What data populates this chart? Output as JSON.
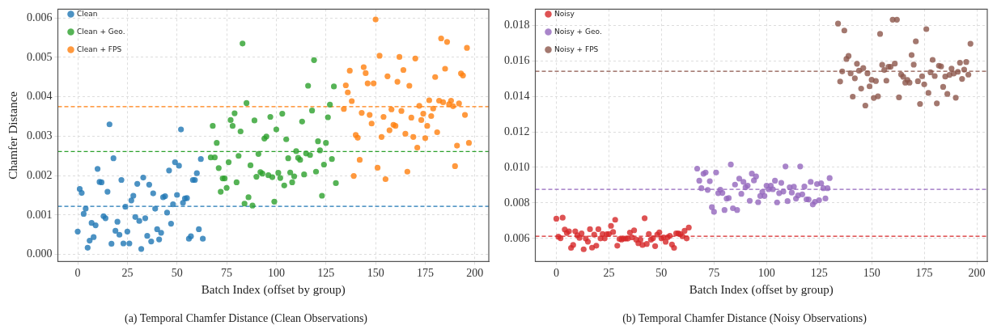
{
  "chart_data": [
    {
      "type": "scatter",
      "title": "(a) Temporal Chamfer Distance (Clean Observations)",
      "xlabel": "Batch Index (offset by group)",
      "ylabel": "Chamfer Distance",
      "xlim": [
        -10,
        207
      ],
      "ylim": [
        -0.00018,
        0.00622
      ],
      "xticks": [
        0,
        25,
        50,
        75,
        100,
        125,
        150,
        175,
        200
      ],
      "yticks": [
        {
          "value": 0,
          "label": "0.000"
        },
        {
          "value": 0.001,
          "label": "0.001"
        },
        {
          "value": 0.002,
          "label": "0.002"
        },
        {
          "value": 0.003,
          "label": "0.003"
        },
        {
          "value": 0.004,
          "label": "0.004"
        },
        {
          "value": 0.005,
          "label": "0.005"
        },
        {
          "value": 0.006,
          "label": "0.006"
        }
      ],
      "grid": true,
      "legend": "top left",
      "marker": "circle",
      "series": [
        {
          "name": "Clean",
          "color": "#1f77b4",
          "x": [
            0,
            1,
            2,
            3,
            4,
            5,
            6,
            7,
            8,
            9,
            10,
            11,
            12,
            13,
            14,
            15,
            16,
            17,
            18,
            19,
            20,
            21,
            22,
            23,
            24,
            25,
            26,
            27,
            28,
            29,
            30,
            31,
            32,
            33,
            34,
            35,
            36,
            37,
            38,
            39,
            40,
            41,
            42,
            43,
            44,
            45,
            46,
            47,
            48,
            49,
            50,
            51,
            52,
            53,
            54,
            55,
            56,
            57,
            58,
            59,
            60,
            61,
            62,
            63
          ],
          "values": [
            0.00058,
            0.00166,
            0.00156,
            0.00103,
            0.00116,
            0.00017,
            0.00035,
            0.0008,
            0.00044,
            0.00074,
            0.00217,
            0.00184,
            0.00183,
            0.00097,
            0.00092,
            0.00159,
            0.0033,
            0.00027,
            0.00244,
            0.0006,
            0.00083,
            0.0005,
            0.00189,
            0.00028,
            0.00121,
            0.00058,
            0.00028,
            0.00137,
            0.00149,
            0.00095,
            0.00179,
            0.00085,
            0.00014,
            0.00195,
            0.00092,
            0.00047,
            0.00177,
            0.00033,
            0.00155,
            0.00116,
            0.00064,
            0.00038,
            0.00055,
            0.00145,
            0.00148,
            0.00106,
            0.00213,
            0.00078,
            0.00127,
            0.00234,
            0.00151,
            0.00225,
            0.00317,
            0.00131,
            0.00142,
            0.00143,
            0.0004,
            0.00046,
            0.00189,
            0.00189,
            0.00206,
            0.00064,
            0.00242,
            0.0004
          ]
        },
        {
          "name": "Clean + Geo.",
          "color": "#2ca02c",
          "x": [
            67,
            68,
            69,
            70,
            71,
            72,
            73,
            74,
            75,
            76,
            77,
            78,
            79,
            80,
            81,
            82,
            83,
            84,
            85,
            86,
            87,
            88,
            89,
            90,
            91,
            92,
            93,
            94,
            95,
            96,
            97,
            98,
            99,
            100,
            101,
            102,
            103,
            104,
            105,
            106,
            107,
            108,
            109,
            110,
            111,
            112,
            113,
            114,
            115,
            116,
            117,
            118,
            119,
            120,
            121,
            122,
            123,
            124,
            125,
            126,
            127,
            128,
            129,
            130
          ],
          "values": [
            0.00246,
            0.00326,
            0.00246,
            0.00283,
            0.00219,
            0.00159,
            0.00193,
            0.00193,
            0.00169,
            0.00234,
            0.00341,
            0.00326,
            0.00358,
            0.00183,
            0.0025,
            0.00312,
            0.00535,
            0.00129,
            0.00384,
            0.00145,
            0.00226,
            0.00124,
            0.0034,
            0.00197,
            0.00255,
            0.00209,
            0.00205,
            0.00294,
            0.00299,
            0.00201,
            0.00349,
            0.00196,
            0.00134,
            0.00317,
            0.00207,
            0.00194,
            0.00357,
            0.00175,
            0.00292,
            0.00244,
            0.00208,
            0.00183,
            0.00198,
            0.00262,
            0.00245,
            0.0024,
            0.00337,
            0.00203,
            0.00256,
            0.00428,
            0.00252,
            0.00365,
            0.00493,
            0.0021,
            0.00287,
            0.00264,
            0.00149,
            0.00228,
            0.00283,
            0.00348,
            0.0038,
            0.00242,
            0.00426,
            0.00181
          ]
        },
        {
          "name": "Clean + FPS",
          "color": "#ff7f0e",
          "x": [
            134,
            135,
            136,
            137,
            138,
            139,
            140,
            141,
            142,
            143,
            144,
            145,
            146,
            147,
            148,
            149,
            150,
            151,
            152,
            153,
            154,
            155,
            156,
            157,
            158,
            159,
            160,
            161,
            162,
            163,
            164,
            165,
            166,
            167,
            168,
            169,
            170,
            171,
            172,
            173,
            174,
            175,
            176,
            177,
            178,
            179,
            180,
            181,
            182,
            183,
            184,
            185,
            186,
            187,
            188,
            189,
            190,
            191,
            192,
            193,
            194,
            195,
            196,
            197
          ],
          "values": [
            0.00369,
            0.00429,
            0.00411,
            0.00466,
            0.00389,
            0.00199,
            0.00303,
            0.00296,
            0.0024,
            0.00359,
            0.00475,
            0.0046,
            0.00434,
            0.00354,
            0.00332,
            0.00434,
            0.00596,
            0.0022,
            0.00504,
            0.00298,
            0.00349,
            0.00191,
            0.00452,
            0.00315,
            0.00368,
            0.00329,
            0.00326,
            0.00438,
            0.00501,
            0.00364,
            0.00468,
            0.00306,
            0.0021,
            0.00428,
            0.00347,
            0.00298,
            0.00497,
            0.00271,
            0.00377,
            0.00341,
            0.00357,
            0.00295,
            0.00326,
            0.00391,
            0.00351,
            0.0037,
            0.0045,
            0.0031,
            0.0039,
            0.00548,
            0.00386,
            0.00471,
            0.00539,
            0.00381,
            0.0039,
            0.00376,
            0.00224,
            0.00276,
            0.00383,
            0.00459,
            0.00454,
            0.00354,
            0.00524,
            0.00283
          ]
        }
      ],
      "ref_lines": [
        {
          "axis": "y",
          "value": 0.00122,
          "color": "#1f77b4",
          "line_style": "dashed"
        },
        {
          "axis": "y",
          "value": 0.00261,
          "color": "#2ca02c",
          "line_style": "dashed"
        },
        {
          "axis": "y",
          "value": 0.00375,
          "color": "#ff7f0e",
          "line_style": "dashed"
        }
      ]
    },
    {
      "type": "scatter",
      "title": "(b) Temporal Chamfer Distance (Noisy Observations)",
      "xlabel": "Batch Index (offset by group)",
      "xlim": [
        -10,
        205
      ],
      "ylim": [
        0.0047,
        0.0189
      ],
      "xticks": [
        0,
        25,
        50,
        75,
        100,
        125,
        150,
        175,
        200
      ],
      "yticks": [
        {
          "value": 0.006,
          "label": "0.006"
        },
        {
          "value": 0.008,
          "label": "0.008"
        },
        {
          "value": 0.01,
          "label": "0.010"
        },
        {
          "value": 0.012,
          "label": "0.012"
        },
        {
          "value": 0.014,
          "label": "0.014"
        },
        {
          "value": 0.016,
          "label": "0.016"
        },
        {
          "value": 0.018,
          "label": "0.018"
        }
      ],
      "grid": true,
      "legend": "top left",
      "marker": "circle",
      "series": [
        {
          "name": "Noisy",
          "color": "#d62728",
          "x": [
            0,
            1,
            2,
            3,
            4,
            5,
            6,
            7,
            8,
            9,
            10,
            11,
            12,
            13,
            14,
            15,
            16,
            17,
            18,
            19,
            20,
            21,
            22,
            23,
            24,
            25,
            26,
            27,
            28,
            29,
            30,
            31,
            32,
            33,
            34,
            35,
            36,
            37,
            38,
            39,
            40,
            41,
            42,
            43,
            44,
            45,
            46,
            47,
            48,
            49,
            50,
            51,
            52,
            53,
            54,
            55,
            56,
            57,
            58,
            59,
            60,
            61,
            62,
            63
          ],
          "values": [
            0.00711,
            0.0061,
            0.00601,
            0.00717,
            0.0065,
            0.00631,
            0.0064,
            0.00547,
            0.00563,
            0.0064,
            0.00618,
            0.00603,
            0.00628,
            0.00539,
            0.00599,
            0.00582,
            0.00652,
            0.00548,
            0.00621,
            0.00559,
            0.00652,
            0.006,
            0.00625,
            0.006,
            0.00624,
            0.00625,
            0.00671,
            0.00636,
            0.00705,
            0.00559,
            0.00597,
            0.00594,
            0.00599,
            0.00599,
            0.00599,
            0.00633,
            0.00606,
            0.00646,
            0.00593,
            0.00573,
            0.00593,
            0.00563,
            0.00714,
            0.00569,
            0.00625,
            0.00593,
            0.00601,
            0.00557,
            0.00622,
            0.00634,
            0.006,
            0.00606,
            0.00581,
            0.00607,
            0.00615,
            0.00566,
            0.00547,
            0.00628,
            0.00628,
            0.00625,
            0.00612,
            0.00643,
            0.006,
            0.00661
          ]
        },
        {
          "name": "Noisy + Geo.",
          "color": "#9467bd",
          "x": [
            67,
            68,
            69,
            70,
            71,
            72,
            73,
            74,
            75,
            76,
            77,
            78,
            79,
            80,
            81,
            82,
            83,
            84,
            85,
            86,
            87,
            88,
            89,
            90,
            91,
            92,
            93,
            94,
            95,
            96,
            97,
            98,
            99,
            100,
            101,
            102,
            103,
            104,
            105,
            106,
            107,
            108,
            109,
            110,
            111,
            112,
            113,
            114,
            115,
            116,
            117,
            118,
            119,
            120,
            121,
            122,
            123,
            124,
            125,
            126,
            127,
            128,
            129,
            130
          ],
          "values": [
            0.00993,
            0.00925,
            0.00883,
            0.00964,
            0.00971,
            0.00873,
            0.00922,
            0.00776,
            0.0075,
            0.00971,
            0.00855,
            0.00874,
            0.00856,
            0.0076,
            0.00824,
            0.00827,
            0.01016,
            0.0077,
            0.00903,
            0.0076,
            0.00937,
            0.00851,
            0.00918,
            0.00888,
            0.00897,
            0.00812,
            0.00965,
            0.00926,
            0.00949,
            0.00804,
            0.00839,
            0.00862,
            0.00839,
            0.00897,
            0.00877,
            0.00897,
            0.00877,
            0.00925,
            0.00803,
            0.00855,
            0.00913,
            0.00864,
            0.01005,
            0.0081,
            0.00888,
            0.00858,
            0.00891,
            0.00824,
            0.00842,
            0.01005,
            0.00848,
            0.00892,
            0.0082,
            0.0082,
            0.00918,
            0.00791,
            0.00806,
            0.00906,
            0.00815,
            0.0091,
            0.00883,
            0.00825,
            0.00883,
            0.0094
          ]
        },
        {
          "name": "Noisy + FPS",
          "color": "#8c564b",
          "x": [
            134,
            135,
            136,
            137,
            138,
            139,
            140,
            141,
            142,
            143,
            144,
            145,
            146,
            147,
            148,
            149,
            150,
            151,
            152,
            153,
            154,
            155,
            156,
            157,
            158,
            159,
            160,
            161,
            162,
            163,
            164,
            165,
            166,
            167,
            168,
            169,
            170,
            171,
            172,
            173,
            174,
            175,
            176,
            177,
            178,
            179,
            180,
            181,
            182,
            183,
            184,
            185,
            186,
            187,
            188,
            189,
            190,
            191,
            192,
            193,
            194,
            195,
            196,
            197
          ],
          "values": [
            0.01809,
            0.01483,
            0.0154,
            0.0177,
            0.0161,
            0.01627,
            0.01529,
            0.01398,
            0.01501,
            0.01583,
            0.01544,
            0.01443,
            0.01559,
            0.01348,
            0.01529,
            0.01456,
            0.01493,
            0.01391,
            0.01486,
            0.014,
            0.01751,
            0.01577,
            0.01548,
            0.01488,
            0.01566,
            0.01566,
            0.01831,
            0.01584,
            0.01831,
            0.01394,
            0.01523,
            0.0151,
            0.01477,
            0.01492,
            0.01477,
            0.01632,
            0.01578,
            0.01709,
            0.01485,
            0.01357,
            0.01513,
            0.01467,
            0.01778,
            0.01419,
            0.01535,
            0.01605,
            0.01514,
            0.0136,
            0.01572,
            0.01568,
            0.01453,
            0.01511,
            0.01413,
            0.0152,
            0.01556,
            0.01528,
            0.01392,
            0.01538,
            0.01589,
            0.01498,
            0.0155,
            0.01593,
            0.01522,
            0.01696
          ]
        }
      ],
      "ref_lines": [
        {
          "axis": "y",
          "value": 0.00612,
          "color": "#d62728",
          "line_style": "dashed"
        },
        {
          "axis": "y",
          "value": 0.00876,
          "color": "#9467bd",
          "line_style": "dashed"
        },
        {
          "axis": "y",
          "value": 0.01541,
          "color": "#8c564b",
          "line_style": "dashed"
        }
      ]
    }
  ]
}
